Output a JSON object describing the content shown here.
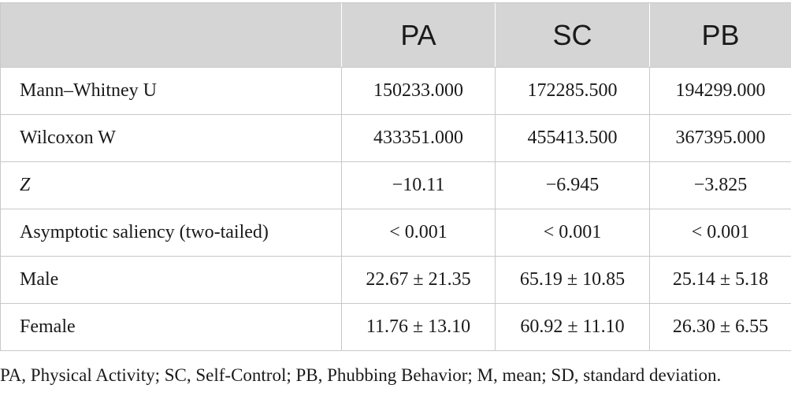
{
  "table": {
    "header": [
      "",
      "PA",
      "SC",
      "PB"
    ],
    "rows": [
      {
        "label": "Mann–Whitney U",
        "italic": false,
        "values": [
          "150233.000",
          "172285.500",
          "194299.000"
        ]
      },
      {
        "label": "Wilcoxon W",
        "italic": false,
        "values": [
          "433351.000",
          "455413.500",
          "367395.000"
        ]
      },
      {
        "label": "Z",
        "italic": true,
        "values": [
          "−10.11",
          "−6.945",
          "−3.825"
        ]
      },
      {
        "label": "Asymptotic saliency (two-tailed)",
        "italic": false,
        "values": [
          "< 0.001",
          "< 0.001",
          "< 0.001"
        ]
      },
      {
        "label": "Male",
        "italic": false,
        "values": [
          "22.67 ± 21.35",
          "65.19 ± 10.85",
          "25.14 ± 5.18"
        ]
      },
      {
        "label": "Female",
        "italic": false,
        "values": [
          "11.76 ± 13.10",
          "60.92 ± 11.10",
          "26.30 ± 6.55"
        ]
      }
    ]
  },
  "footnote": "PA, Physical Activity; SC, Self-Control; PB, Phubbing Behavior; M, mean; SD, standard deviation.",
  "colors": {
    "header_bg": "#d5d5d5",
    "border": "#c8c8c8",
    "text": "#1a1a1a"
  }
}
